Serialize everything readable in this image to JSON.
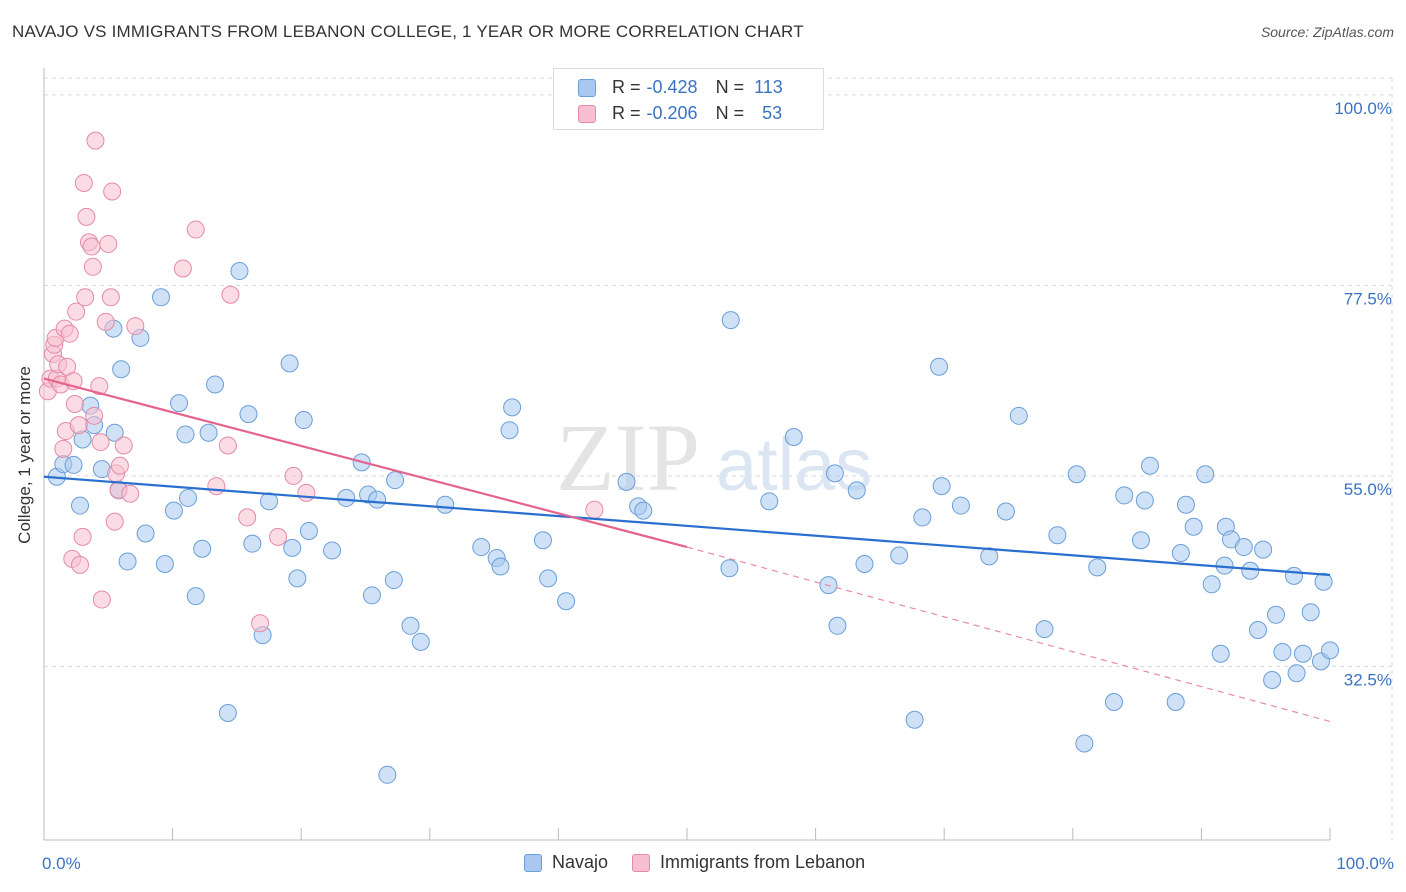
{
  "title": "NAVAJO VS IMMIGRANTS FROM LEBANON COLLEGE, 1 YEAR OR MORE CORRELATION CHART",
  "source": "Source: ZipAtlas.com",
  "watermark": {
    "zip": "ZIP",
    "atlas": "atlas"
  },
  "stats": [
    {
      "r_label": "R =",
      "r_value": "-0.428",
      "n_label": "N =",
      "n_value": "113",
      "color": "#a8c8ef",
      "border": "#6a9fd8"
    },
    {
      "r_label": "R =",
      "r_value": "-0.206",
      "n_label": "N =",
      "n_value": "53",
      "color": "#f7bfd0",
      "border": "#e58aa8"
    }
  ],
  "legend": [
    {
      "label": "Navajo",
      "color": "#a8c8ef",
      "border": "#6a9fd8"
    },
    {
      "label": "Immigrants from Lebanon",
      "color": "#f7bfd0",
      "border": "#e58aa8"
    }
  ],
  "chart_data": {
    "type": "scatter",
    "ylabel": "College, 1 year or more",
    "xlabel": "",
    "x_tick_labels": [
      "0.0%",
      "100.0%"
    ],
    "y_tick_labels": [
      "100.0%",
      "77.5%",
      "55.0%",
      "32.5%"
    ],
    "y_ticks": [
      100.0,
      77.5,
      55.0,
      32.5
    ],
    "xlim": [
      0,
      100
    ],
    "ylim": [
      12,
      102
    ],
    "grid": "horizontal dashed",
    "legend_position": "bottom",
    "series": [
      {
        "name": "Navajo",
        "color": "#a8c8ef",
        "stroke": "#6a9fd8",
        "trend": {
          "x": [
            0,
            100
          ],
          "y": [
            54.9,
            43.3
          ],
          "color": "#2a6fd0"
        },
        "points": [
          [
            1.0,
            54.9
          ],
          [
            1.5,
            56.4
          ],
          [
            2.3,
            56.3
          ],
          [
            3.0,
            59.3
          ],
          [
            2.8,
            51.5
          ],
          [
            3.6,
            63.3
          ],
          [
            3.9,
            61.0
          ],
          [
            4.5,
            55.8
          ],
          [
            5.4,
            72.4
          ],
          [
            5.5,
            60.1
          ],
          [
            5.8,
            53.4
          ],
          [
            6.0,
            67.6
          ],
          [
            6.5,
            44.9
          ],
          [
            7.5,
            71.3
          ],
          [
            7.9,
            48.2
          ],
          [
            9.1,
            76.1
          ],
          [
            9.4,
            44.6
          ],
          [
            10.1,
            50.9
          ],
          [
            10.5,
            63.6
          ],
          [
            11.0,
            59.9
          ],
          [
            11.2,
            52.4
          ],
          [
            11.8,
            40.8
          ],
          [
            12.3,
            46.4
          ],
          [
            12.8,
            60.1
          ],
          [
            13.3,
            65.8
          ],
          [
            14.3,
            27.0
          ],
          [
            15.2,
            79.2
          ],
          [
            15.9,
            62.3
          ],
          [
            16.2,
            47.0
          ],
          [
            17.0,
            36.2
          ],
          [
            17.5,
            52.0
          ],
          [
            19.1,
            68.3
          ],
          [
            19.3,
            46.5
          ],
          [
            19.7,
            42.9
          ],
          [
            20.2,
            61.6
          ],
          [
            20.6,
            48.5
          ],
          [
            22.4,
            46.2
          ],
          [
            23.5,
            52.4
          ],
          [
            24.7,
            56.6
          ],
          [
            25.2,
            52.8
          ],
          [
            25.5,
            40.9
          ],
          [
            25.9,
            52.2
          ],
          [
            26.7,
            19.7
          ],
          [
            27.2,
            42.7
          ],
          [
            27.3,
            54.5
          ],
          [
            28.5,
            37.3
          ],
          [
            29.3,
            35.4
          ],
          [
            31.2,
            51.6
          ],
          [
            34.0,
            46.6
          ],
          [
            35.2,
            45.3
          ],
          [
            35.5,
            44.3
          ],
          [
            36.2,
            60.4
          ],
          [
            36.4,
            63.1
          ],
          [
            38.8,
            47.4
          ],
          [
            39.2,
            42.9
          ],
          [
            40.6,
            40.2
          ],
          [
            45.3,
            54.3
          ],
          [
            46.2,
            51.4
          ],
          [
            46.6,
            50.9
          ],
          [
            53.3,
            44.1
          ],
          [
            53.4,
            73.4
          ],
          [
            56.4,
            52.0
          ],
          [
            58.3,
            59.6
          ],
          [
            61.0,
            42.1
          ],
          [
            61.5,
            55.3
          ],
          [
            61.7,
            37.3
          ],
          [
            63.2,
            53.3
          ],
          [
            63.8,
            44.6
          ],
          [
            66.5,
            45.6
          ],
          [
            67.7,
            26.2
          ],
          [
            68.3,
            50.1
          ],
          [
            69.6,
            67.9
          ],
          [
            69.8,
            53.8
          ],
          [
            71.3,
            51.5
          ],
          [
            73.5,
            45.5
          ],
          [
            74.8,
            50.8
          ],
          [
            75.8,
            62.1
          ],
          [
            77.8,
            36.9
          ],
          [
            78.8,
            48.0
          ],
          [
            80.3,
            55.2
          ],
          [
            80.9,
            23.4
          ],
          [
            81.9,
            44.2
          ],
          [
            83.2,
            28.3
          ],
          [
            84.0,
            52.7
          ],
          [
            85.3,
            47.4
          ],
          [
            85.6,
            52.1
          ],
          [
            86.0,
            56.2
          ],
          [
            88.0,
            28.3
          ],
          [
            88.4,
            45.9
          ],
          [
            88.8,
            51.6
          ],
          [
            89.4,
            49.0
          ],
          [
            90.3,
            55.2
          ],
          [
            90.8,
            42.2
          ],
          [
            91.5,
            34.0
          ],
          [
            91.8,
            44.4
          ],
          [
            91.9,
            49.0
          ],
          [
            92.3,
            47.5
          ],
          [
            93.3,
            46.6
          ],
          [
            93.8,
            43.8
          ],
          [
            94.4,
            36.8
          ],
          [
            94.8,
            46.3
          ],
          [
            95.5,
            30.9
          ],
          [
            95.8,
            38.6
          ],
          [
            96.3,
            34.2
          ],
          [
            97.2,
            43.2
          ],
          [
            97.4,
            31.7
          ],
          [
            97.9,
            34.0
          ],
          [
            98.5,
            38.9
          ],
          [
            99.3,
            33.1
          ],
          [
            99.5,
            42.5
          ],
          [
            100.0,
            34.4
          ]
        ]
      },
      {
        "name": "Immigrants from Lebanon",
        "color": "#f7bfd0",
        "stroke": "#e58aa8",
        "trend": {
          "x": [
            0,
            50
          ],
          "y": [
            66.5,
            46.6
          ],
          "color": "#e4648e"
        },
        "trend_extension": {
          "x": [
            50,
            100
          ],
          "y": [
            46.6,
            26.0
          ],
          "color": "#e88aa8"
        },
        "points": [
          [
            0.3,
            65.0
          ],
          [
            0.5,
            66.5
          ],
          [
            0.7,
            69.4
          ],
          [
            0.8,
            70.5
          ],
          [
            0.9,
            71.3
          ],
          [
            1.0,
            66.5
          ],
          [
            1.1,
            68.2
          ],
          [
            1.3,
            65.8
          ],
          [
            1.5,
            58.2
          ],
          [
            1.6,
            72.4
          ],
          [
            1.7,
            60.3
          ],
          [
            1.8,
            67.9
          ],
          [
            2.0,
            71.8
          ],
          [
            2.2,
            45.2
          ],
          [
            2.3,
            66.2
          ],
          [
            2.4,
            63.5
          ],
          [
            2.5,
            74.4
          ],
          [
            2.7,
            61.0
          ],
          [
            2.8,
            44.5
          ],
          [
            3.0,
            47.8
          ],
          [
            3.1,
            89.6
          ],
          [
            3.2,
            76.1
          ],
          [
            3.3,
            85.6
          ],
          [
            3.5,
            82.6
          ],
          [
            3.7,
            82.1
          ],
          [
            3.8,
            79.7
          ],
          [
            3.9,
            62.1
          ],
          [
            4.0,
            94.6
          ],
          [
            4.3,
            65.6
          ],
          [
            4.4,
            59.0
          ],
          [
            4.5,
            40.4
          ],
          [
            4.8,
            73.2
          ],
          [
            5.0,
            82.4
          ],
          [
            5.2,
            76.1
          ],
          [
            5.3,
            88.6
          ],
          [
            5.5,
            49.6
          ],
          [
            5.6,
            55.3
          ],
          [
            5.8,
            53.3
          ],
          [
            5.9,
            56.2
          ],
          [
            6.2,
            58.6
          ],
          [
            6.7,
            52.9
          ],
          [
            7.1,
            72.7
          ],
          [
            10.8,
            79.5
          ],
          [
            11.8,
            84.1
          ],
          [
            13.4,
            53.8
          ],
          [
            14.3,
            58.6
          ],
          [
            14.5,
            76.4
          ],
          [
            15.8,
            50.1
          ],
          [
            16.8,
            37.6
          ],
          [
            18.2,
            47.8
          ],
          [
            19.4,
            55.0
          ],
          [
            20.4,
            53.0
          ],
          [
            42.8,
            51.0
          ]
        ]
      }
    ]
  }
}
